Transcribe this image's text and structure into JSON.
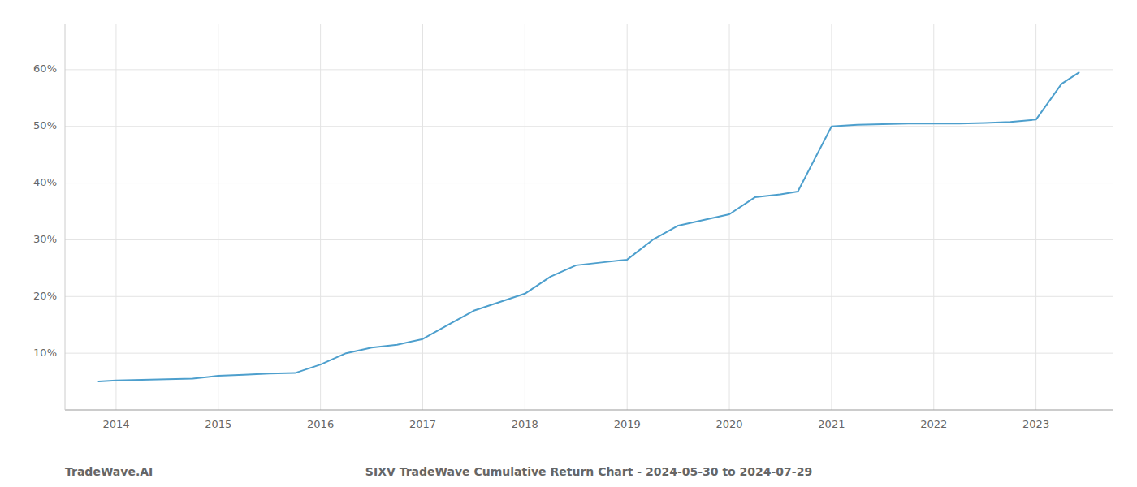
{
  "chart_data": {
    "type": "line",
    "title": "SIXV TradeWave Cumulative Return Chart - 2024-05-30 to 2024-07-29",
    "subtitle": "TradeWave.AI",
    "color": "#4d9fcd",
    "grid": true,
    "x": [
      2013.83,
      2014.0,
      2014.25,
      2014.5,
      2014.75,
      2015.0,
      2015.25,
      2015.5,
      2015.75,
      2016.0,
      2016.25,
      2016.5,
      2016.75,
      2017.0,
      2017.25,
      2017.5,
      2017.75,
      2018.0,
      2018.25,
      2018.5,
      2018.75,
      2019.0,
      2019.25,
      2019.5,
      2019.75,
      2020.0,
      2020.25,
      2020.5,
      2020.67,
      2021.0,
      2021.25,
      2021.5,
      2021.75,
      2022.0,
      2022.25,
      2022.5,
      2022.75,
      2023.0,
      2023.25,
      2023.42
    ],
    "values": [
      5.0,
      5.2,
      5.3,
      5.4,
      5.5,
      6.0,
      6.2,
      6.4,
      6.5,
      8.0,
      10.0,
      11.0,
      11.5,
      12.5,
      15.0,
      17.5,
      19.0,
      20.5,
      23.5,
      25.5,
      26.0,
      26.5,
      30.0,
      32.5,
      33.5,
      34.5,
      37.5,
      38.0,
      38.5,
      50.0,
      50.3,
      50.4,
      50.5,
      50.5,
      50.5,
      50.6,
      50.8,
      51.2,
      57.5,
      59.5
    ],
    "xlim": [
      2013.5,
      2023.75
    ],
    "xticks": [
      2014,
      2015,
      2016,
      2017,
      2018,
      2019,
      2020,
      2021,
      2022,
      2023
    ],
    "ylim": [
      0,
      68
    ],
    "yticks": [
      {
        "value": 10,
        "label": "10%"
      },
      {
        "value": 20,
        "label": "20%"
      },
      {
        "value": 30,
        "label": "30%"
      },
      {
        "value": 40,
        "label": "40%"
      },
      {
        "value": 50,
        "label": "50%"
      },
      {
        "value": 60,
        "label": "60%"
      }
    ]
  }
}
